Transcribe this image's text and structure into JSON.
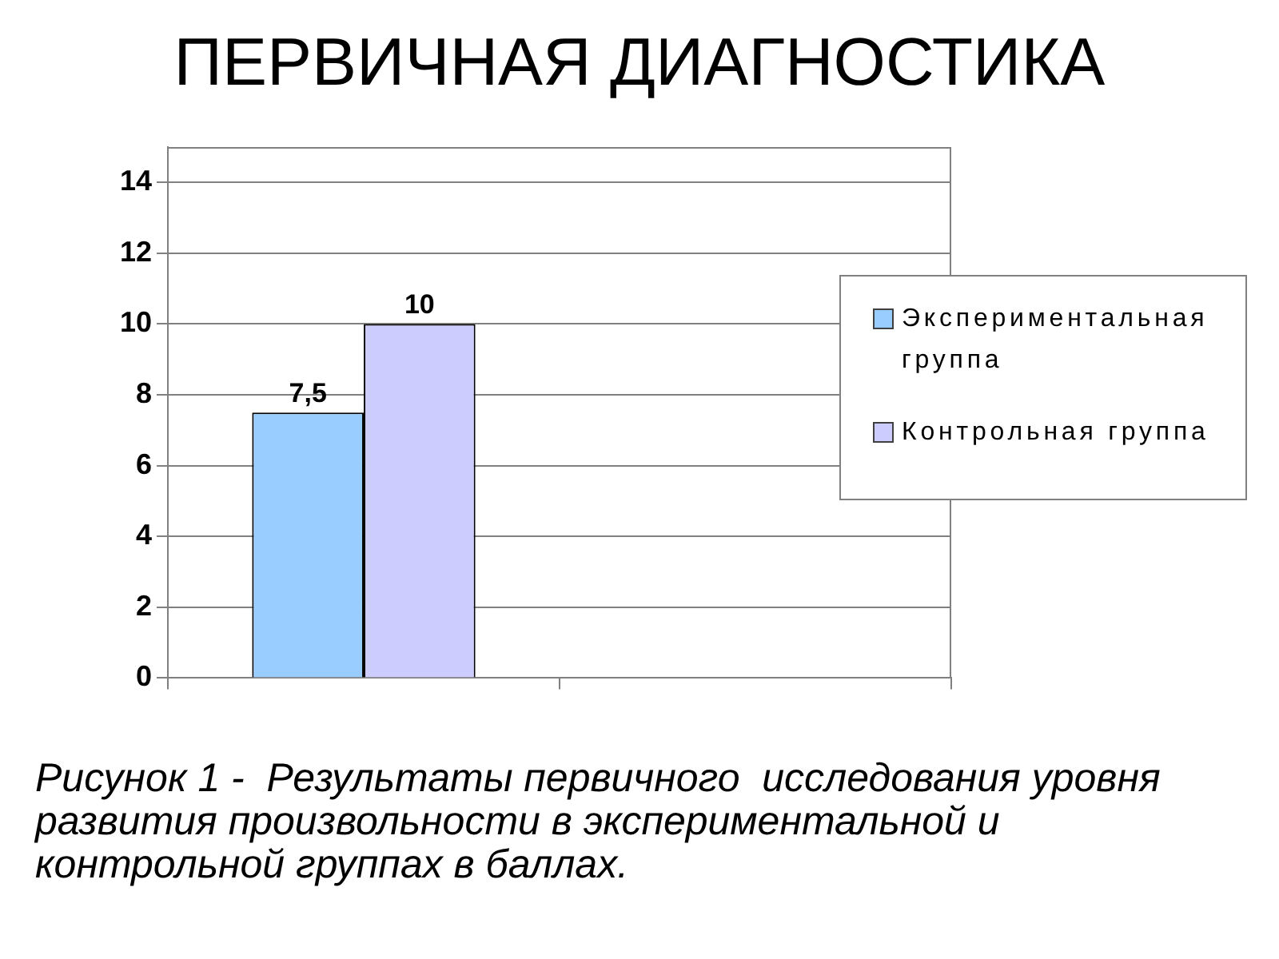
{
  "chart_data": {
    "type": "bar",
    "title": "ПЕРВИЧНАЯ ДИАГНОСТИКА",
    "annotations": [
      "Рисунок 1 -  Результаты первичного  исследования уровня развития произвольности в экспериментальной и контрольной группах в баллах."
    ],
    "categories": [
      null,
      null
    ],
    "series": [
      {
        "name": "Экспериментальная группа",
        "color": "#99ccff",
        "values": [
          7.5,
          null
        ],
        "value_labels": [
          "7,5",
          null
        ]
      },
      {
        "name": "Контрольная группа",
        "color": "#ccccff",
        "values": [
          10,
          null
        ],
        "value_labels": [
          "10",
          null
        ]
      }
    ],
    "ylim": [
      0,
      15
    ],
    "yticks": [
      0,
      2,
      4,
      6,
      8,
      10,
      12,
      14
    ],
    "grid": "y",
    "legend": "right"
  }
}
